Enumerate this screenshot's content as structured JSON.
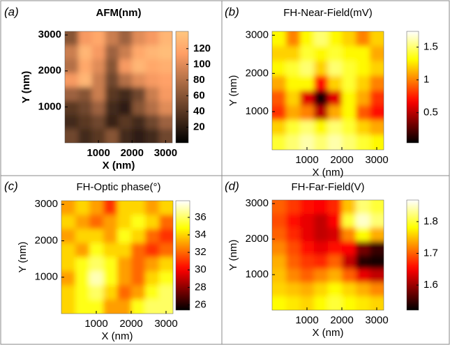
{
  "chart_data": [
    {
      "type": "heatmap",
      "panel_label": "(a)",
      "title": "AFM(nm)",
      "xlabel": "X (nm)",
      "ylabel": "Y (nm)",
      "xlim": [
        0,
        3200
      ],
      "xticks": [
        1000,
        2000,
        3000
      ],
      "ylim": [
        0,
        3100
      ],
      "yticks": [
        1000,
        2000,
        3000
      ],
      "colormap": "copper",
      "clim": [
        0,
        142
      ],
      "cticks": [
        20,
        40,
        60,
        80,
        100,
        120
      ],
      "z": [
        [
          60,
          110,
          120,
          90,
          70,
          100,
          110,
          130
        ],
        [
          90,
          130,
          110,
          70,
          90,
          120,
          130,
          135
        ],
        [
          80,
          120,
          100,
          60,
          110,
          130,
          120,
          125
        ],
        [
          110,
          130,
          90,
          50,
          80,
          100,
          110,
          115
        ],
        [
          70,
          60,
          90,
          40,
          30,
          50,
          90,
          110
        ],
        [
          40,
          50,
          70,
          30,
          20,
          60,
          80,
          100
        ],
        [
          30,
          40,
          50,
          25,
          40,
          30,
          50,
          70
        ],
        [
          50,
          30,
          40,
          60,
          30,
          20,
          30,
          50
        ]
      ]
    },
    {
      "type": "heatmap",
      "panel_label": "(b)",
      "title": "FH-Near-Field(mV)",
      "xlabel": "X (nm)",
      "ylabel": "Y (nm)",
      "xlim": [
        0,
        3200
      ],
      "xticks": [
        1000,
        2000,
        3000
      ],
      "ylim": [
        0,
        3100
      ],
      "yticks": [
        1000,
        2000,
        3000
      ],
      "colormap": "hot",
      "clim": [
        0.04,
        1.74
      ],
      "cticks": [
        0.5,
        1,
        1.5
      ],
      "z": [
        [
          1.3,
          1.0,
          1.3,
          1.5,
          1.3,
          1.2,
          1.0,
          1.2
        ],
        [
          1.2,
          1.2,
          1.4,
          1.3,
          1.4,
          1.3,
          1.3,
          1.1
        ],
        [
          1.3,
          1.4,
          1.5,
          1.2,
          1.5,
          1.4,
          1.3,
          1.2
        ],
        [
          1.1,
          1.3,
          1.3,
          0.7,
          1.2,
          1.4,
          1.2,
          1.0
        ],
        [
          0.9,
          1.2,
          0.6,
          0.1,
          0.6,
          1.3,
          1.1,
          0.8
        ],
        [
          0.8,
          1.1,
          1.0,
          0.5,
          1.1,
          1.3,
          0.9,
          0.7
        ],
        [
          1.2,
          1.4,
          1.5,
          1.3,
          1.5,
          1.4,
          1.2,
          1.1
        ],
        [
          1.4,
          1.5,
          1.6,
          1.5,
          1.6,
          1.5,
          1.4,
          1.3
        ]
      ]
    },
    {
      "type": "heatmap",
      "panel_label": "(c)",
      "title": "FH-Optic phase(°)",
      "xlabel": "X (nm)",
      "ylabel": "Y (nm)",
      "xlim": [
        0,
        3200
      ],
      "xticks": [
        1000,
        2000,
        3000
      ],
      "ylim": [
        0,
        3100
      ],
      "yticks": [
        1000,
        2000,
        3000
      ],
      "colormap": "hot",
      "clim": [
        25.4,
        37.9
      ],
      "cticks": [
        26,
        28,
        30,
        32,
        34,
        36
      ],
      "z": [
        [
          33,
          34,
          33,
          31,
          34,
          34,
          33,
          34
        ],
        [
          34,
          33,
          32,
          33,
          34,
          35,
          34,
          32
        ],
        [
          33,
          34,
          34,
          33,
          35,
          34,
          32,
          31
        ],
        [
          34,
          33,
          35,
          34,
          34,
          32,
          31,
          32
        ],
        [
          34,
          35,
          36,
          35,
          33,
          32,
          33,
          34
        ],
        [
          33,
          35,
          37,
          35,
          33,
          32,
          34,
          35
        ],
        [
          34,
          35,
          36,
          34,
          32,
          33,
          35,
          36
        ],
        [
          34,
          35,
          35,
          33,
          33,
          35,
          36,
          36
        ]
      ]
    },
    {
      "type": "heatmap",
      "panel_label": "(d)",
      "title": "FH-Far-Field(V)",
      "xlabel": "X (nm)",
      "ylabel": "Y (nm)",
      "xlim": [
        0,
        3200
      ],
      "xticks": [
        1000,
        2000,
        3000
      ],
      "ylim": [
        0,
        3100
      ],
      "yticks": [
        1000,
        2000,
        3000
      ],
      "colormap": "hot",
      "clim": [
        1.521,
        1.868
      ],
      "cticks": [
        1.6,
        1.7,
        1.8
      ],
      "z": [
        [
          1.7,
          1.68,
          1.66,
          1.65,
          1.67,
          1.75,
          1.82,
          1.8
        ],
        [
          1.69,
          1.66,
          1.64,
          1.62,
          1.65,
          1.8,
          1.85,
          1.82
        ],
        [
          1.7,
          1.67,
          1.64,
          1.62,
          1.63,
          1.72,
          1.78,
          1.74
        ],
        [
          1.72,
          1.69,
          1.66,
          1.64,
          1.66,
          1.65,
          1.58,
          1.55
        ],
        [
          1.74,
          1.7,
          1.68,
          1.67,
          1.7,
          1.62,
          1.54,
          1.53
        ],
        [
          1.75,
          1.72,
          1.7,
          1.72,
          1.74,
          1.7,
          1.64,
          1.62
        ],
        [
          1.76,
          1.75,
          1.74,
          1.76,
          1.78,
          1.76,
          1.74,
          1.72
        ],
        [
          1.78,
          1.77,
          1.76,
          1.78,
          1.8,
          1.78,
          1.77,
          1.76
        ]
      ]
    }
  ]
}
